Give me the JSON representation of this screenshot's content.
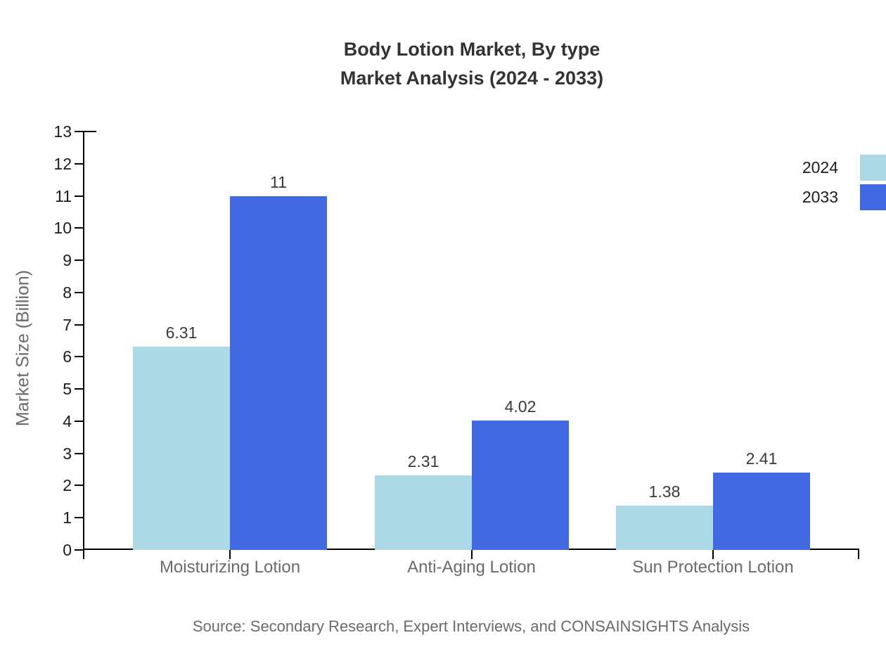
{
  "title": {
    "line1": "Body Lotion Market, By type",
    "line2": "Market Analysis (2024 - 2033)"
  },
  "ylabel": "Market Size (Billion)",
  "source": "Source: Secondary Research, Expert Interviews, and CONSAINSIGHTS Analysis",
  "colors": {
    "series_2024": "#add8e6",
    "series_2033": "#4169e1",
    "axis": "#000000",
    "tick_text": "#1c1c1c",
    "muted_text": "#6a6a6a",
    "title_text": "#333333"
  },
  "chart_data": {
    "type": "bar",
    "title": "Body Lotion Market, By type — Market Analysis (2024 - 2033)",
    "xlabel": "",
    "ylabel": "Market Size (Billion)",
    "categories": [
      "Moisturizing Lotion",
      "Anti-Aging Lotion",
      "Sun Protection Lotion"
    ],
    "series": [
      {
        "name": "2024",
        "color": "#add8e6",
        "values": [
          6.31,
          2.31,
          1.38
        ]
      },
      {
        "name": "2033",
        "color": "#4169e1",
        "values": [
          11,
          4.02,
          2.41
        ]
      }
    ],
    "value_labels": [
      [
        "6.31",
        "2.31",
        "1.38"
      ],
      [
        "11",
        "4.02",
        "2.41"
      ]
    ],
    "ylim": [
      0,
      13
    ],
    "yticks": [
      0,
      1,
      2,
      3,
      4,
      5,
      6,
      7,
      8,
      9,
      10,
      11,
      12,
      13
    ],
    "grid": false,
    "legend_position": "top-right"
  }
}
